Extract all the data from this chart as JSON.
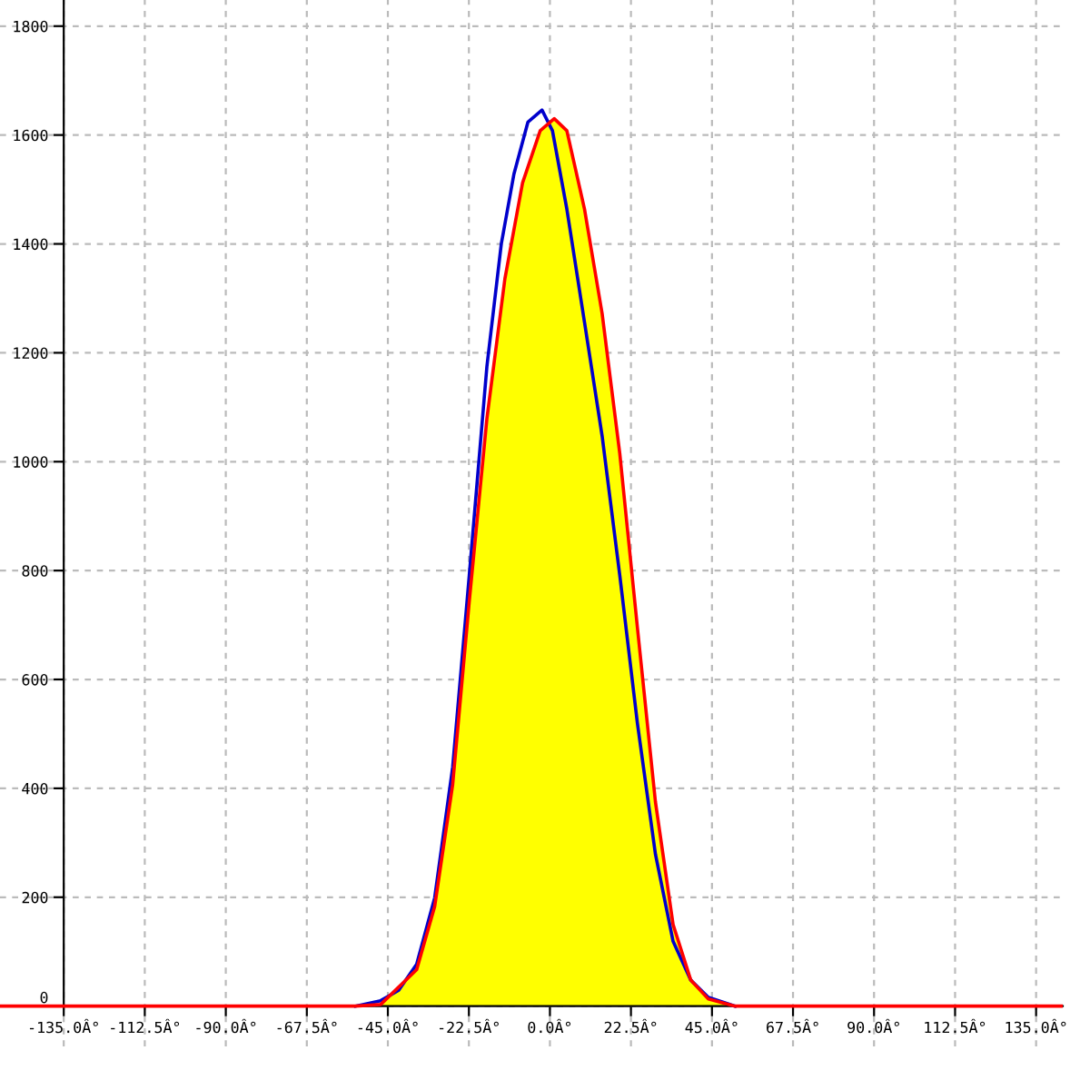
{
  "chart_data": {
    "type": "line",
    "xlim": [
      -152.7,
      142.4
    ],
    "ylim": [
      -74,
      1848
    ],
    "xticks": [
      {
        "value": -135,
        "label": "-135.0Â°"
      },
      {
        "value": -112.5,
        "label": "-112.5Â°"
      },
      {
        "value": -90,
        "label": "-90.0Â°"
      },
      {
        "value": -67.5,
        "label": "-67.5Â°"
      },
      {
        "value": -45,
        "label": "-45.0Â°"
      },
      {
        "value": -22.5,
        "label": "-22.5Â°"
      },
      {
        "value": 0,
        "label": "0.0Â°"
      },
      {
        "value": 22.5,
        "label": "22.5Â°"
      },
      {
        "value": 45,
        "label": "45.0Â°"
      },
      {
        "value": 67.5,
        "label": "67.5Â°"
      },
      {
        "value": 90,
        "label": "90.0Â°"
      },
      {
        "value": 112.5,
        "label": "112.5Â°"
      },
      {
        "value": 135,
        "label": "135.0Â°"
      }
    ],
    "yticks": [
      0,
      200,
      400,
      600,
      800,
      1000,
      1200,
      1400,
      1600,
      1800
    ],
    "grid": true,
    "series": [
      {
        "type": "area",
        "color": "#ffff00",
        "x": [
          -54,
          -47,
          -37,
          -32,
          -27,
          -22.4,
          -17.5,
          -12.5,
          -7.6,
          -2.7,
          1.2,
          4.7,
          9.6,
          14.5,
          19.4,
          24.3,
          29.3,
          34.2,
          39.1,
          44,
          51.4
        ],
        "values": [
          0,
          3,
          67,
          183,
          407,
          743,
          1079,
          1336,
          1512,
          1608,
          1630,
          1608,
          1464,
          1272,
          1015,
          695,
          375,
          150,
          48,
          13,
          0
        ]
      },
      {
        "color": "#0000cc",
        "x": [
          -54,
          -47,
          -42,
          -37,
          -32,
          -27,
          -22.4,
          -17.5,
          -13.5,
          -10,
          -6.1,
          -2.2,
          0.7,
          4.7,
          9.6,
          14.5,
          19.4,
          24.3,
          29.3,
          34.2,
          39.1,
          44,
          51.4
        ],
        "values": [
          0,
          10,
          29,
          77,
          199,
          439,
          791,
          1175,
          1400,
          1528,
          1624,
          1646,
          1608,
          1464,
          1256,
          1047,
          791,
          519,
          279,
          119,
          48,
          16,
          0
        ]
      },
      {
        "color": "#ff0000",
        "x": [
          -152.7,
          -54,
          -47,
          -37,
          -32,
          -27,
          -22.4,
          -17.5,
          -12.5,
          -7.6,
          -2.7,
          1.2,
          4.7,
          9.6,
          14.5,
          19.4,
          24.3,
          29.3,
          34.2,
          39.1,
          44,
          51.4,
          142.4
        ],
        "values": [
          0,
          0,
          3,
          67,
          183,
          407,
          743,
          1079,
          1336,
          1512,
          1608,
          1630,
          1608,
          1464,
          1272,
          1015,
          695,
          375,
          150,
          48,
          13,
          0,
          0
        ]
      }
    ]
  }
}
